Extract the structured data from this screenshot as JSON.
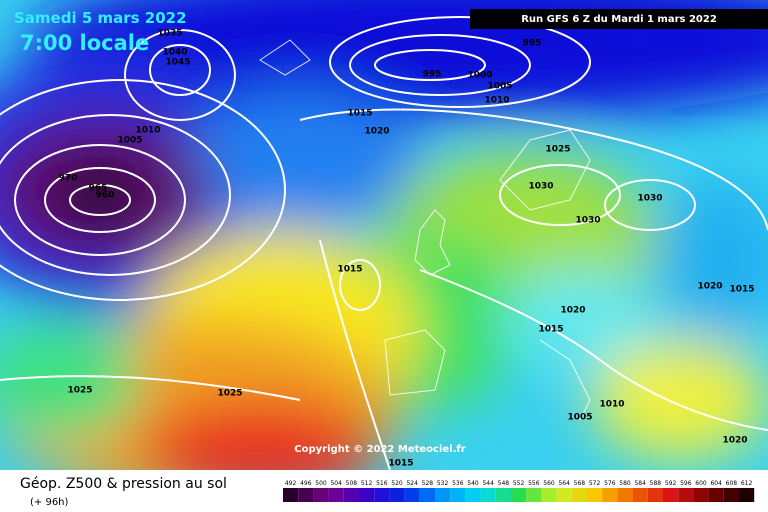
{
  "header": {
    "date": "Samedi 5 mars 2022",
    "time": "7:00 locale",
    "run": "Run GFS 6 Z du Mardi 1 mars 2022"
  },
  "copyright": "Copyright © 2022 Meteociel.fr",
  "footer": {
    "title": "Géop. Z500 & pression au sol",
    "lead": "(+ 96h)"
  },
  "legend": {
    "labels": [
      492,
      496,
      500,
      504,
      508,
      512,
      516,
      520,
      524,
      528,
      532,
      536,
      540,
      544,
      548,
      552,
      556,
      560,
      564,
      568,
      572,
      576,
      580,
      584,
      588,
      592,
      596,
      600,
      604,
      608,
      612
    ]
  },
  "isobar_labels": [
    1035,
    1040,
    1045,
    995,
    995,
    1000,
    1005,
    1010,
    1015,
    1020,
    1025,
    1030,
    1030,
    1030,
    1015,
    1020,
    1015,
    1020,
    1015,
    1025,
    1025,
    1005,
    1010,
    1020,
    1015,
    970,
    965,
    960,
    1010,
    1005
  ]
}
